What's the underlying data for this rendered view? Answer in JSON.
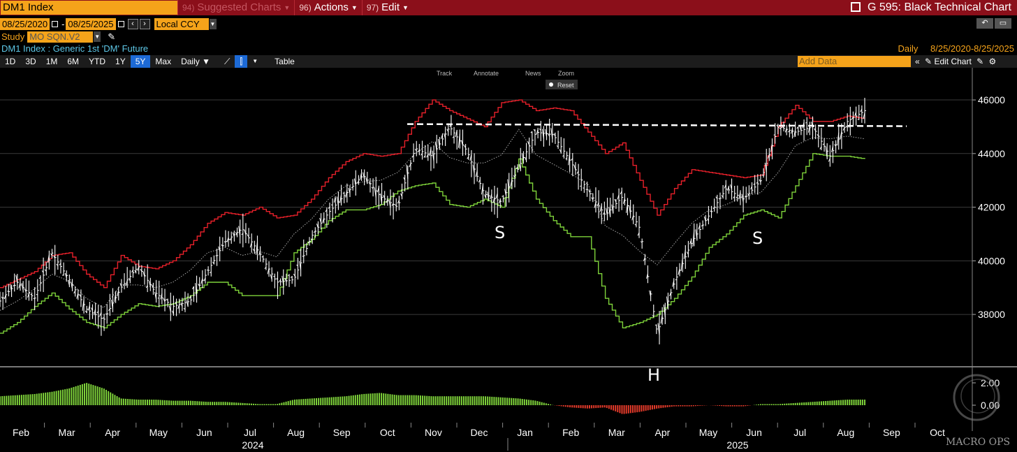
{
  "topbar": {
    "ticker": "DM1 Index",
    "items": [
      {
        "num": "94)",
        "label": "Suggested Charts",
        "dim": true
      },
      {
        "num": "96)",
        "label": "Actions",
        "dim": false
      },
      {
        "num": "97)",
        "label": "Edit",
        "dim": false
      }
    ],
    "title": "G 595: Black Technical Chart"
  },
  "daterow": {
    "start": "08/25/2020",
    "sep": "-",
    "end": "08/25/2025",
    "currency": "Local CCY"
  },
  "studyrow": {
    "label": "Study",
    "value": "MO SQN.V2"
  },
  "description": "DM1 Index : Generic 1st 'DM' Future",
  "rangeinfo": {
    "period": "Daily",
    "range": "8/25/2020-8/25/2025"
  },
  "toolbar": {
    "timeframes": [
      "1D",
      "3D",
      "1M",
      "6M",
      "YTD",
      "1Y",
      "5Y",
      "Max"
    ],
    "active": "5Y",
    "period": "Daily",
    "table": "Table",
    "add_data": "Add Data",
    "edit_chart": "Edit Chart"
  },
  "chart_tools": {
    "items": [
      "Track",
      "Annotate",
      "News",
      "Zoom"
    ],
    "reset": "Reset"
  },
  "chart_data": {
    "type": "line",
    "months": [
      "Feb",
      "Mar",
      "Apr",
      "May",
      "Jun",
      "Jul",
      "Aug",
      "Sep",
      "Oct",
      "Nov",
      "Dec",
      "Jan",
      "Feb",
      "Mar",
      "Apr",
      "May",
      "Jun",
      "Jul",
      "Aug",
      "Sep",
      "Oct"
    ],
    "years": [
      "2024",
      "2025"
    ],
    "y_ticks": [
      46000,
      44000,
      42000,
      40000,
      38000
    ],
    "ylim": [
      36100,
      47200
    ],
    "price": [
      38500,
      39200,
      38600,
      40300,
      39300,
      38200,
      37800,
      39000,
      39800,
      38800,
      38300,
      38500,
      39600,
      40700,
      41200,
      40300,
      39200,
      39300,
      40900,
      41800,
      42500,
      43200,
      42400,
      42000,
      44200,
      43900,
      45000,
      44100,
      42500,
      42200,
      43500,
      44800,
      44700,
      43700,
      42600,
      41700,
      42400,
      41200,
      37300,
      39200,
      40700,
      41700,
      42700,
      42300,
      43000,
      45000,
      44800,
      45000,
      43900,
      45200,
      45600
    ],
    "upper_band": [
      39000,
      39300,
      39600,
      40200,
      40300,
      39500,
      39000,
      40200,
      39800,
      39700,
      40000,
      40600,
      41400,
      41800,
      41700,
      42000,
      41600,
      41700,
      42300,
      43100,
      43700,
      44000,
      43900,
      44000,
      45200,
      46000,
      45600,
      45300,
      45000,
      45900,
      46000,
      45600,
      45700,
      45600,
      44800,
      44000,
      44400,
      43000,
      41700,
      42700,
      43400,
      43300,
      43200,
      43100,
      43200,
      45000,
      45800,
      45200,
      45200,
      45400,
      45300
    ],
    "lower_band": [
      37300,
      37700,
      38300,
      38800,
      38200,
      37700,
      37500,
      38000,
      38400,
      38300,
      38400,
      38700,
      39200,
      39200,
      38700,
      38700,
      38700,
      40300,
      40800,
      41500,
      41900,
      41900,
      42100,
      42600,
      42800,
      42900,
      42100,
      42000,
      42300,
      42000,
      43800,
      42300,
      41500,
      40900,
      40900,
      38600,
      37500,
      37700,
      38000,
      38600,
      39400,
      40500,
      41000,
      41700,
      41900,
      41600,
      42800,
      44000,
      43900,
      43900,
      43800
    ],
    "resistance_level": 45100,
    "pattern_labels": [
      "S",
      "H",
      "S"
    ],
    "lower_panel": {
      "y_ticks": [
        2.0,
        0.0
      ],
      "tick_labels": [
        "2.00",
        "0.00"
      ],
      "values": [
        0.8,
        0.9,
        1.0,
        1.2,
        1.5,
        2.0,
        1.5,
        0.6,
        0.5,
        0.5,
        0.4,
        0.4,
        0.3,
        0.3,
        0.2,
        0.1,
        0.1,
        0.5,
        0.6,
        0.7,
        0.8,
        1.0,
        1.1,
        0.9,
        0.9,
        0.8,
        0.8,
        0.8,
        0.8,
        0.7,
        0.6,
        0.4,
        0.0,
        -0.2,
        -0.3,
        -0.2,
        -0.8,
        -0.6,
        -0.3,
        -0.1,
        -0.1,
        0.0,
        -0.1,
        -0.1,
        0.1,
        0.1,
        0.2,
        0.3,
        0.4,
        0.5,
        0.5
      ]
    }
  },
  "watermark": "MACRO OPS"
}
